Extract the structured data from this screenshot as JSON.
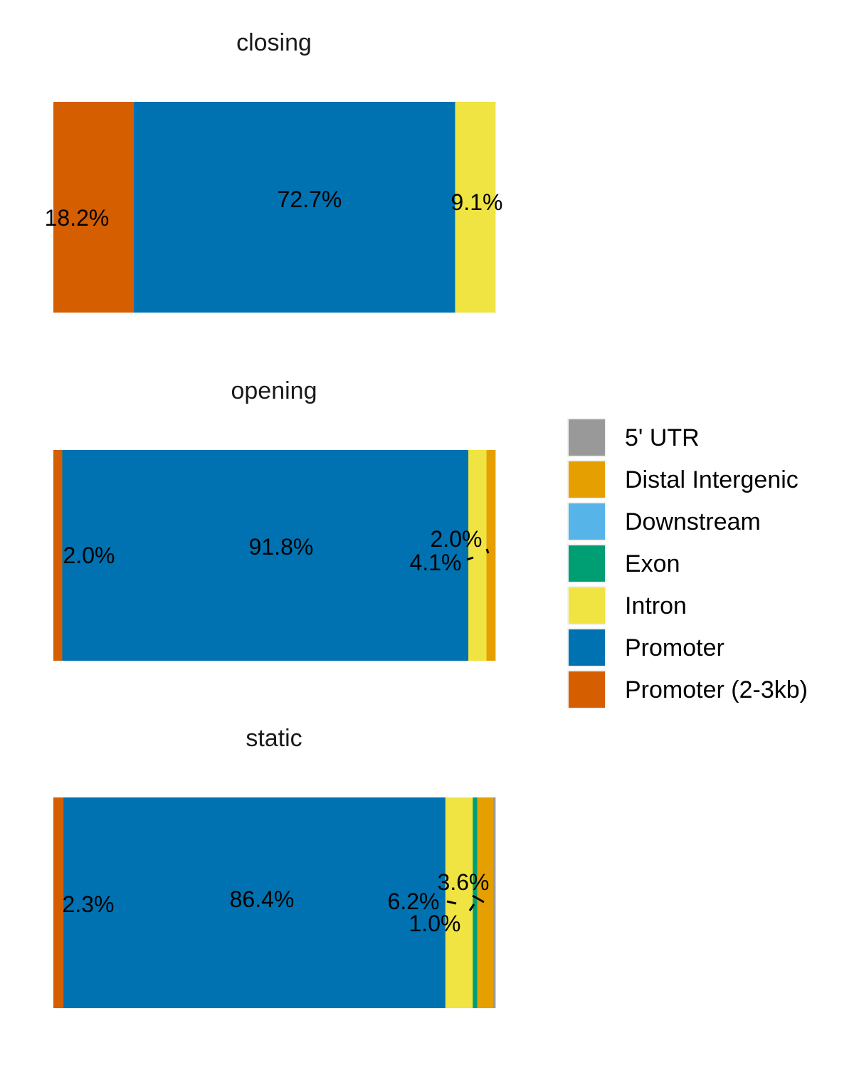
{
  "chart_data": {
    "type": "bar",
    "orientation": "horizontal-stacked-100",
    "categories": [
      "5' UTR",
      "Distal Intergenic",
      "Downstream",
      "Exon",
      "Intron",
      "Promoter",
      "Promoter (2-3kb)"
    ],
    "colors": {
      "5' UTR": "#999999",
      "Distal Intergenic": "#E69F00",
      "Downstream": "#56B4E9",
      "Exon": "#009E73",
      "Intron": "#F0E442",
      "Promoter": "#0072B2",
      "Promoter (2-3kb)": "#D55E00"
    },
    "panels": [
      {
        "title": "closing",
        "segments": [
          {
            "category": "Promoter (2-3kb)",
            "percent": 18.2,
            "label": "18.2%"
          },
          {
            "category": "Promoter",
            "percent": 72.7,
            "label": "72.7%"
          },
          {
            "category": "Intron",
            "percent": 9.1,
            "label": "9.1%"
          }
        ]
      },
      {
        "title": "opening",
        "segments": [
          {
            "category": "Promoter (2-3kb)",
            "percent": 2.0,
            "label": "2.0%"
          },
          {
            "category": "Promoter",
            "percent": 91.8,
            "label": "91.8%"
          },
          {
            "category": "Intron",
            "percent": 4.1,
            "label": "4.1%"
          },
          {
            "category": "Distal Intergenic",
            "percent": 2.0,
            "label": "2.0%"
          }
        ]
      },
      {
        "title": "static",
        "segments": [
          {
            "category": "Promoter (2-3kb)",
            "percent": 2.3,
            "label": "2.3%"
          },
          {
            "category": "Promoter",
            "percent": 86.4,
            "label": "86.4%"
          },
          {
            "category": "Intron",
            "percent": 6.2,
            "label": "6.2%"
          },
          {
            "category": "Exon",
            "percent": 1.0,
            "label": "1.0%"
          },
          {
            "category": "Distal Intergenic",
            "percent": 3.6,
            "label": "3.6%"
          },
          {
            "category": "5' UTR",
            "percent": 0.5,
            "label": ""
          }
        ]
      }
    ],
    "legend": {
      "position": "right",
      "entries": [
        "5' UTR",
        "Distal Intergenic",
        "Downstream",
        "Exon",
        "Intron",
        "Promoter",
        "Promoter (2-3kb)"
      ]
    }
  }
}
